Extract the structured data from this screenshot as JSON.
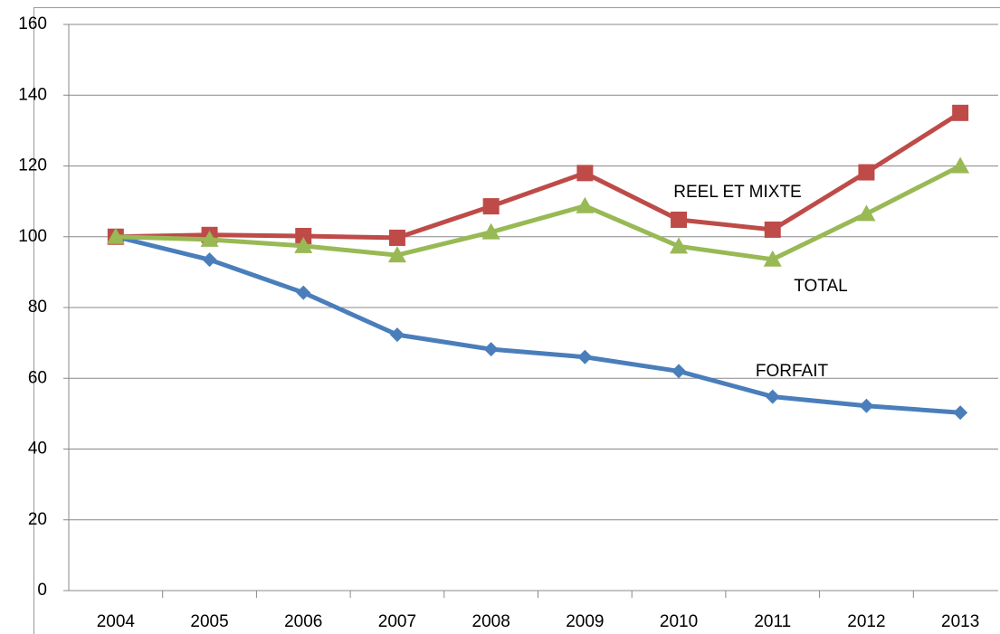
{
  "chart_data": {
    "type": "line",
    "categories": [
      "2004",
      "2005",
      "2006",
      "2007",
      "2008",
      "2009",
      "2010",
      "2011",
      "2012",
      "2013"
    ],
    "series": [
      {
        "name": "FORFAIT",
        "color": "#4a7ebb",
        "marker": "diamond",
        "values": [
          100,
          93.5,
          84.2,
          72.3,
          68.2,
          66,
          62,
          54.8,
          52.2,
          50.3
        ]
      },
      {
        "name": "REEL ET MIXTE",
        "color": "#be4b48",
        "marker": "square",
        "values": [
          100,
          100.5,
          100.2,
          99.7,
          108.6,
          118,
          104.8,
          102,
          118.2,
          135
        ]
      },
      {
        "name": "TOTAL",
        "color": "#98b954",
        "marker": "triangle",
        "values": [
          100,
          99.2,
          97.4,
          94.8,
          101.3,
          108.7,
          97.3,
          93.6,
          106.5,
          120
        ]
      }
    ],
    "ylim": [
      0,
      160
    ],
    "yticks": [
      0,
      20,
      40,
      60,
      80,
      100,
      120,
      140,
      160
    ],
    "grid": true
  }
}
